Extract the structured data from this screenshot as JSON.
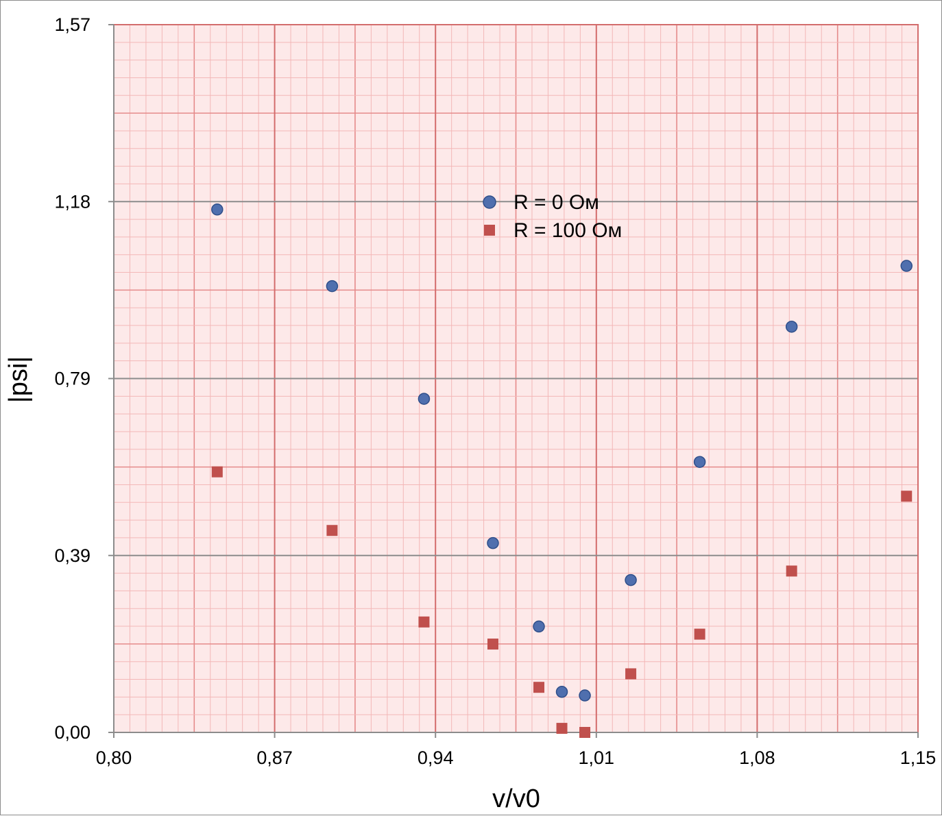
{
  "chart_data": {
    "type": "scatter",
    "xlabel": "v/v0",
    "ylabel": "|psi|",
    "xlim": [
      0.8,
      1.15
    ],
    "ylim": [
      0.0,
      1.57
    ],
    "x_ticks": [
      "0,80",
      "0,87",
      "0,94",
      "1,01",
      "1,08",
      "1,15"
    ],
    "y_ticks": [
      "0,00",
      "0,39",
      "0,79",
      "1,18",
      "1,57"
    ],
    "grid": true,
    "legend_position": "center-top",
    "series": [
      {
        "name": "R = 0 Ом",
        "marker": "circle",
        "color": "#4f6fae",
        "points": [
          [
            0.845,
            1.16
          ],
          [
            0.895,
            0.99
          ],
          [
            0.935,
            0.74
          ],
          [
            0.965,
            0.42
          ],
          [
            0.985,
            0.235
          ],
          [
            0.995,
            0.09
          ],
          [
            1.005,
            0.082
          ],
          [
            1.025,
            0.338
          ],
          [
            1.055,
            0.6
          ],
          [
            1.095,
            0.9
          ],
          [
            1.145,
            1.035
          ]
        ]
      },
      {
        "name": "R = 100 Ом",
        "marker": "square",
        "color": "#c0504d",
        "points": [
          [
            0.845,
            0.578
          ],
          [
            0.895,
            0.448
          ],
          [
            0.935,
            0.245
          ],
          [
            0.965,
            0.196
          ],
          [
            0.985,
            0.1
          ],
          [
            0.995,
            0.009
          ],
          [
            1.005,
            0.0
          ],
          [
            1.025,
            0.13
          ],
          [
            1.055,
            0.218
          ],
          [
            1.095,
            0.358
          ],
          [
            1.145,
            0.524
          ]
        ]
      }
    ],
    "colors": {
      "grid_minor": "#f3b7b7",
      "grid_mid": "#e58a8a",
      "grid_major": "#d36c6c",
      "grid_tick": "#8c8c8c",
      "marker_edge": "#2f4f8a"
    }
  }
}
